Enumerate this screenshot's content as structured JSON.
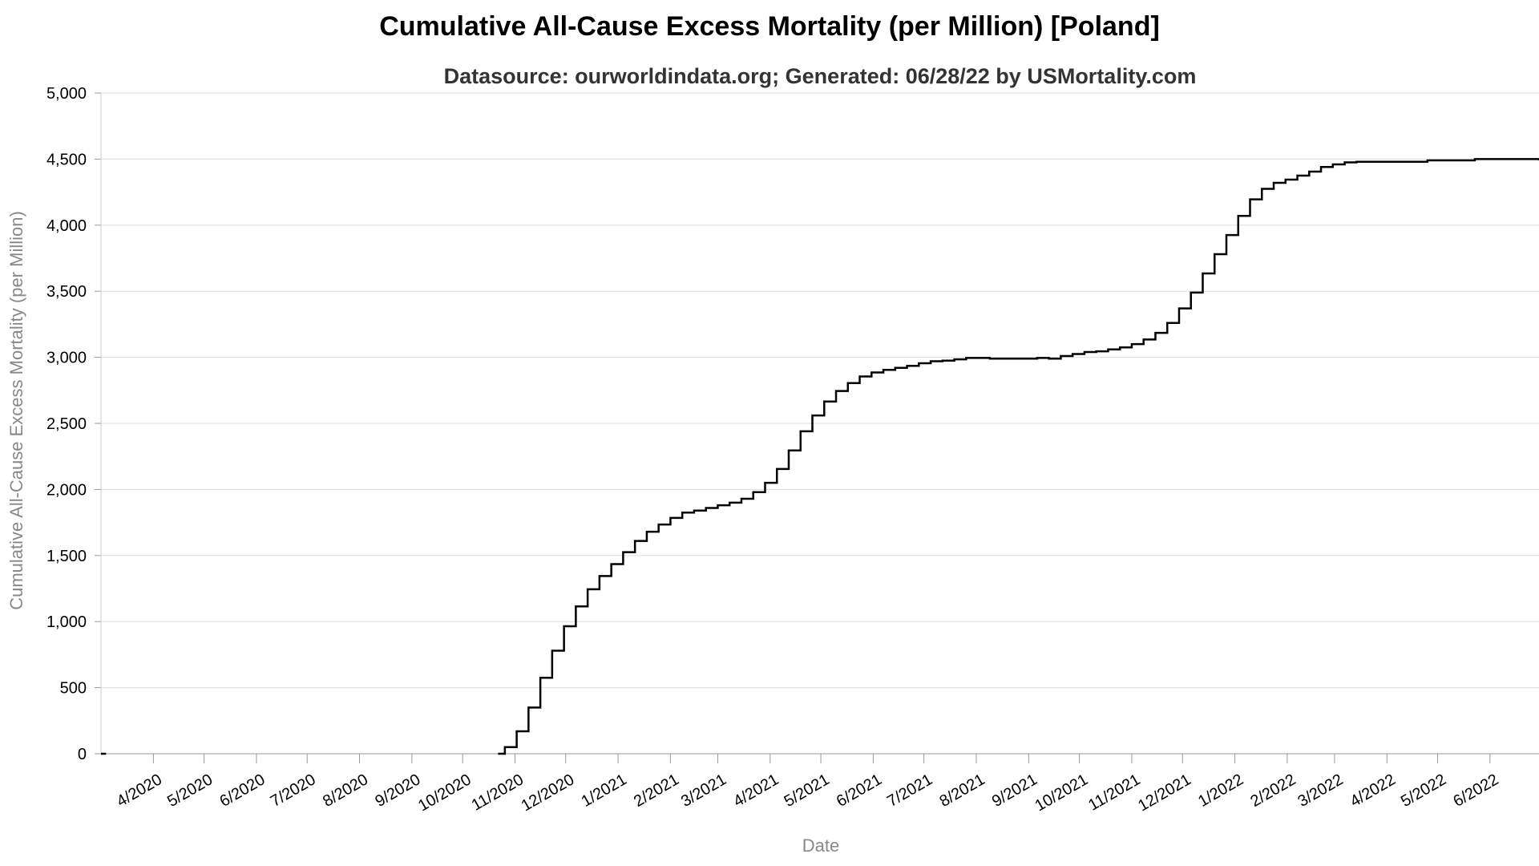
{
  "chart_data": {
    "type": "line",
    "title": "Cumulative All-Cause Excess Mortality (per Million) [Poland]",
    "subtitle": "Datasource: ourworldindata.org; Generated: 06/28/22 by USMortality.com",
    "xlabel": "Date",
    "ylabel": "Cumulative All-Cause Excess Mortality (per Million)",
    "ylim": [
      0,
      5000
    ],
    "xlim": [
      "2020-03-01",
      "2022-06-30"
    ],
    "y_ticks": [
      0,
      500,
      1000,
      1500,
      2000,
      2500,
      3000,
      3500,
      4000,
      4500,
      5000
    ],
    "y_tick_labels": [
      "0",
      "500",
      "1,000",
      "1,500",
      "2,000",
      "2,500",
      "3,000",
      "3,500",
      "4,000",
      "4,500",
      "5,000"
    ],
    "x_ticks": [
      "2020-04-01",
      "2020-05-01",
      "2020-06-01",
      "2020-07-01",
      "2020-08-01",
      "2020-09-01",
      "2020-10-01",
      "2020-11-01",
      "2020-12-01",
      "2021-01-01",
      "2021-02-01",
      "2021-03-01",
      "2021-04-01",
      "2021-05-01",
      "2021-06-01",
      "2021-07-01",
      "2021-08-01",
      "2021-09-01",
      "2021-10-01",
      "2021-11-01",
      "2021-12-01",
      "2022-01-01",
      "2022-02-01",
      "2022-03-01",
      "2022-04-01",
      "2022-05-01",
      "2022-06-01"
    ],
    "x_tick_labels": [
      "4/2020",
      "5/2020",
      "6/2020",
      "7/2020",
      "8/2020",
      "9/2020",
      "10/2020",
      "11/2020",
      "12/2020",
      "1/2021",
      "2/2021",
      "3/2021",
      "4/2021",
      "5/2021",
      "6/2021",
      "7/2021",
      "8/2021",
      "9/2021",
      "10/2021",
      "11/2021",
      "12/2021",
      "1/2022",
      "2/2022",
      "3/2022",
      "4/2022",
      "5/2022",
      "6/2022"
    ],
    "grid": true,
    "line_color": "#000000",
    "series": [
      {
        "step": true,
        "x": [
          "2020-03-01",
          "2020-03-04",
          "2020-10-22",
          "2020-10-26",
          "2020-11-02",
          "2020-11-09",
          "2020-11-16",
          "2020-11-23",
          "2020-11-30",
          "2020-12-07",
          "2020-12-14",
          "2020-12-21",
          "2020-12-28",
          "2021-01-04",
          "2021-01-11",
          "2021-01-18",
          "2021-01-25",
          "2021-02-01",
          "2021-02-08",
          "2021-02-15",
          "2021-02-22",
          "2021-03-01",
          "2021-03-08",
          "2021-03-15",
          "2021-03-22",
          "2021-03-29",
          "2021-04-05",
          "2021-04-12",
          "2021-04-19",
          "2021-04-26",
          "2021-05-03",
          "2021-05-10",
          "2021-05-17",
          "2021-05-24",
          "2021-05-31",
          "2021-06-07",
          "2021-06-14",
          "2021-06-21",
          "2021-06-28",
          "2021-07-05",
          "2021-07-12",
          "2021-07-19",
          "2021-07-26",
          "2021-08-02",
          "2021-08-09",
          "2021-08-16",
          "2021-08-23",
          "2021-08-30",
          "2021-09-06",
          "2021-09-13",
          "2021-09-20",
          "2021-09-27",
          "2021-10-04",
          "2021-10-11",
          "2021-10-18",
          "2021-10-25",
          "2021-11-01",
          "2021-11-08",
          "2021-11-15",
          "2021-11-22",
          "2021-11-29",
          "2021-12-06",
          "2021-12-13",
          "2021-12-20",
          "2021-12-27",
          "2022-01-03",
          "2022-01-10",
          "2022-01-17",
          "2022-01-24",
          "2022-01-31",
          "2022-02-07",
          "2022-02-14",
          "2022-02-21",
          "2022-02-28",
          "2022-03-07",
          "2022-03-14",
          "2022-04-04",
          "2022-04-25",
          "2022-05-23",
          "2022-06-30"
        ],
        "y": [
          0,
          null,
          0,
          50,
          170,
          350,
          575,
          780,
          965,
          1115,
          1245,
          1345,
          1435,
          1525,
          1610,
          1680,
          1735,
          1785,
          1825,
          1840,
          1860,
          1880,
          1900,
          1930,
          1980,
          2050,
          2155,
          2295,
          2440,
          2560,
          2665,
          2745,
          2805,
          2855,
          2885,
          2905,
          2920,
          2935,
          2955,
          2970,
          2975,
          2985,
          2995,
          2995,
          2990,
          2990,
          2990,
          2990,
          2995,
          2990,
          3010,
          3025,
          3040,
          3045,
          3060,
          3075,
          3100,
          3135,
          3185,
          3260,
          3370,
          3490,
          3635,
          3780,
          3925,
          4070,
          4195,
          4275,
          4320,
          4345,
          4375,
          4405,
          4440,
          4460,
          4475,
          4480,
          4480,
          4490,
          4500,
          4490
        ]
      }
    ]
  }
}
